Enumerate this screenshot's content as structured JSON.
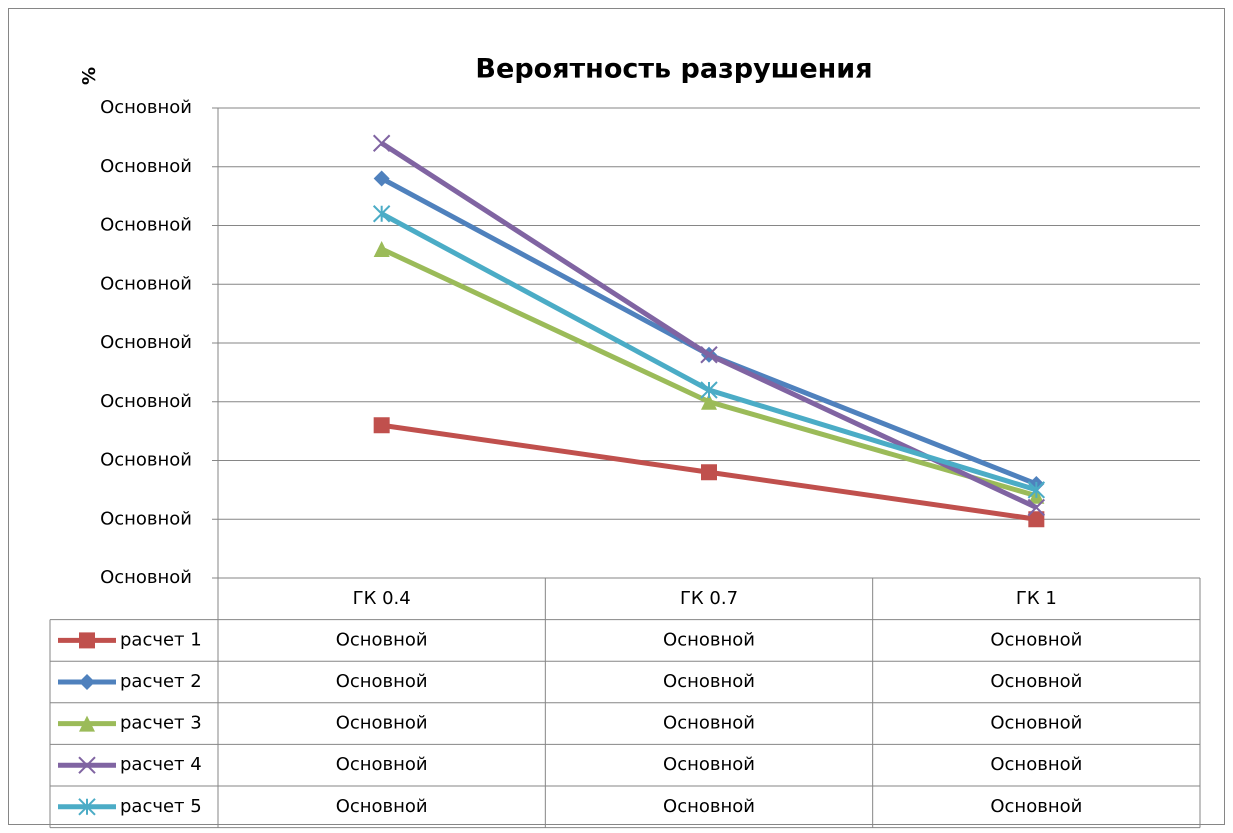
{
  "chart_data": {
    "type": "line",
    "title": "Вероятность разрушения",
    "y_label": "%",
    "categories": [
      "ГК 0.4",
      "ГК 0.7",
      "ГК 1"
    ],
    "ylim": [
      0,
      8
    ],
    "yticks": [
      {
        "value": 0,
        "label": "Основной"
      },
      {
        "value": 1,
        "label": "Основной"
      },
      {
        "value": 2,
        "label": "Основной"
      },
      {
        "value": 3,
        "label": "Основной"
      },
      {
        "value": 4,
        "label": "Основной"
      },
      {
        "value": 5,
        "label": "Основной"
      },
      {
        "value": 6,
        "label": "Основной"
      },
      {
        "value": 7,
        "label": "Основной"
      },
      {
        "value": 8,
        "label": "Основной"
      }
    ],
    "grid": true,
    "series": [
      {
        "name": "расчет 1",
        "color": "#c0504d",
        "marker": "square",
        "values": [
          2.6,
          1.8,
          1.0
        ],
        "value_labels": [
          "Основной",
          "Основной",
          "Основной"
        ]
      },
      {
        "name": "расчет 2",
        "color": "#4f81bd",
        "marker": "diamond",
        "values": [
          6.8,
          3.8,
          1.6
        ],
        "value_labels": [
          "Основной",
          "Основной",
          "Основной"
        ]
      },
      {
        "name": "расчет 3",
        "color": "#9bbb59",
        "marker": "triangle",
        "values": [
          5.6,
          3.0,
          1.4
        ],
        "value_labels": [
          "Основной",
          "Основной",
          "Основной"
        ]
      },
      {
        "name": "расчет 4",
        "color": "#8064a2",
        "marker": "x",
        "values": [
          7.4,
          3.8,
          1.2
        ],
        "value_labels": [
          "Основной",
          "Основной",
          "Основной"
        ]
      },
      {
        "name": "расчет 5",
        "color": "#4bacc6",
        "marker": "star",
        "values": [
          6.2,
          3.2,
          1.5
        ],
        "value_labels": [
          "Основной",
          "Основной",
          "Основной"
        ]
      }
    ]
  }
}
